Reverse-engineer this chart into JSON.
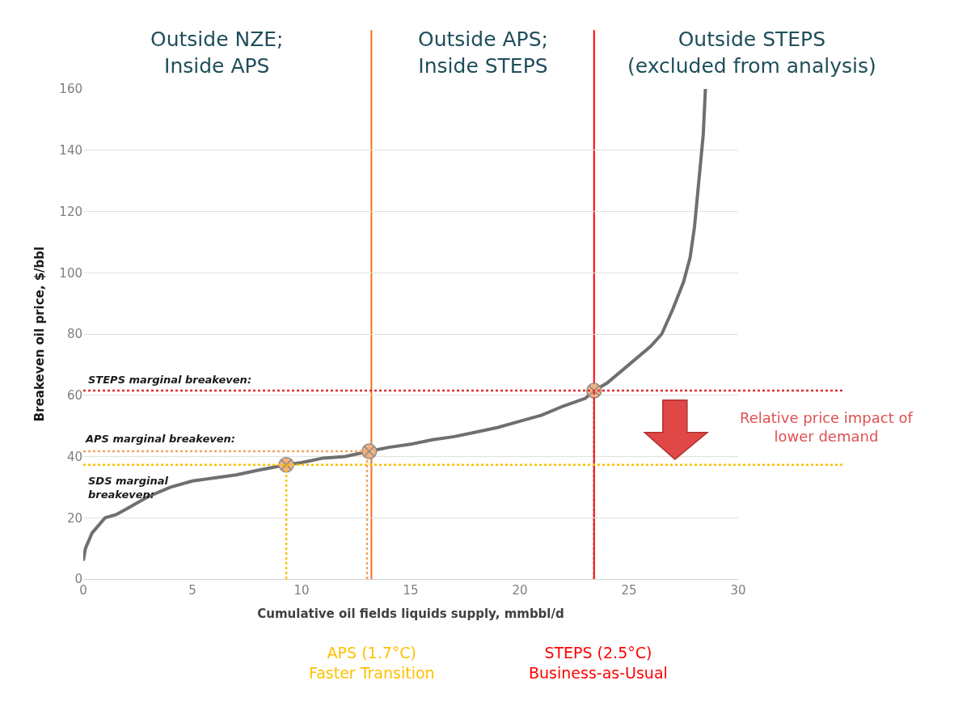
{
  "chart_data": {
    "type": "line",
    "xlabel": "Cumulative oil fields liquids supply, mmbbl/d",
    "ylabel": "Breakeven oil price, $/bbl",
    "xlim": [
      0,
      30
    ],
    "xticks": [
      0,
      5,
      10,
      15,
      20,
      25,
      30
    ],
    "ylim": [
      0,
      160
    ],
    "yticks": [
      0,
      20,
      40,
      60,
      80,
      100,
      120,
      140,
      160
    ],
    "grid": "y",
    "series": [
      {
        "color": "#6f6f6f",
        "line_style": "solid",
        "x": [
          0,
          0.1,
          0.4,
          1.0,
          1.5,
          2,
          3,
          4,
          5,
          6,
          7,
          8,
          9.3,
          10,
          11,
          12,
          13.1,
          14,
          15,
          16,
          17,
          18,
          19,
          20,
          21,
          22,
          23,
          23.4,
          24,
          25,
          26,
          26.5,
          27,
          27.5,
          27.8,
          28,
          28.2,
          28.4,
          28.5
        ],
        "values": [
          6,
          10,
          15,
          20,
          21,
          23,
          27,
          30,
          32,
          33,
          34,
          35.5,
          37.3,
          38,
          39.5,
          40,
          41.7,
          43,
          44,
          45.5,
          46.5,
          48,
          49.5,
          51.5,
          53.5,
          56.5,
          59,
          61.5,
          64,
          70,
          76,
          80,
          88,
          97,
          105,
          115,
          130,
          145,
          160
        ]
      },
      {
        "type": "scatter",
        "color": "#f4b183",
        "x": [
          9.3,
          13.1,
          23.4
        ],
        "values": [
          37.3,
          41.7,
          61.5
        ]
      },
      {
        "color": "#ffc000",
        "line_style": "dotted",
        "x": [
          9.3,
          9.3
        ],
        "values": [
          0,
          37.3
        ]
      },
      {
        "color": "#f4a460",
        "line_style": "dotted",
        "x": [
          13.0,
          13.0
        ],
        "values": [
          0,
          41.7
        ]
      },
      {
        "color": "#f4a460",
        "line_style": "dotted",
        "x": [
          0,
          13.1
        ],
        "values": [
          41.7,
          41.7
        ]
      },
      {
        "color": "#e03030",
        "line_style": "dotted",
        "x": [
          23.4,
          23.4
        ],
        "values": [
          0,
          61.5
        ]
      }
    ],
    "ref_lines": [
      {
        "axis": "x",
        "value": 13.2,
        "color": "#f07020",
        "line_style": "solid"
      },
      {
        "axis": "x",
        "value": 23.4,
        "color": "#ff0000",
        "line_style": "solid"
      },
      {
        "axis": "y",
        "value": 61.5,
        "label": "STEPS marginal breakeven:",
        "color": "#e03030",
        "line_style": "dotted"
      },
      {
        "axis": "y",
        "value": 37.3,
        "label": "SDS marginal\nbreakeven:",
        "color": "#ffc000",
        "line_style": "dotted"
      }
    ],
    "annotations": [
      "Outside NZE;\nInside APS",
      "Outside APS;\nInside STEPS",
      "Outside STEPS\n(excluded from analysis)",
      {
        "text": "APS marginal breakeven:",
        "x": 0,
        "y": 41.7
      },
      "Relative price impact of\nlower demand",
      "APS (1.7°C)\nFaster Transition",
      "STEPS (2.5°C)\nBusiness-as-Usual"
    ]
  }
}
